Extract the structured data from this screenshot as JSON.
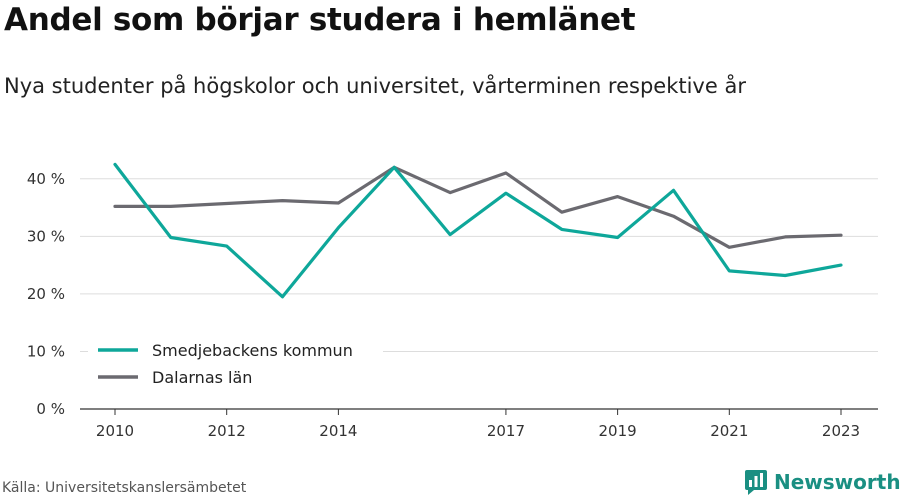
{
  "header": {
    "title": "Andel som börjar studera i hemlänet",
    "subtitle": "Nya studenter på högskolor och universitet, vårterminen respektive år"
  },
  "footer": {
    "source": "Källa: Universitetskanslersämbetet",
    "brand": "Newsworthy",
    "brand_icon": "bar-chart-logo-icon"
  },
  "colors": {
    "smedjebacken": "#0ea79a",
    "dalarna": "#6b6a70",
    "grid": "#dddddd",
    "axis": "#333333",
    "brand": "#1a8f82"
  },
  "chart_data": {
    "type": "line",
    "x": [
      2010,
      2011,
      2012,
      2013,
      2014,
      2015,
      2016,
      2017,
      2018,
      2019,
      2020,
      2021,
      2022,
      2023
    ],
    "x_tick_labels": [
      "2010",
      "2012",
      "2014",
      "2017",
      "2019",
      "2021",
      "2023"
    ],
    "x_ticks": [
      2010,
      2012,
      2014,
      2017,
      2019,
      2021,
      2023
    ],
    "y_ticks": [
      0,
      10,
      20,
      30,
      40
    ],
    "y_tick_labels": [
      "0 %",
      "10 %",
      "20 %",
      "30 %",
      "40 %"
    ],
    "ylim": [
      0,
      45
    ],
    "grid": true,
    "legend_position": "bottom-left",
    "series": [
      {
        "name": "Smedjebackens kommun",
        "values": [
          42.5,
          29.8,
          28.3,
          19.5,
          31.5,
          42.0,
          30.3,
          37.5,
          31.2,
          29.8,
          38.0,
          24.0,
          23.2,
          25.0
        ]
      },
      {
        "name": "Dalarnas län",
        "values": [
          35.2,
          35.2,
          35.7,
          36.2,
          35.8,
          42.0,
          37.6,
          41.0,
          34.2,
          36.9,
          33.5,
          28.1,
          29.9,
          30.2
        ]
      }
    ]
  }
}
